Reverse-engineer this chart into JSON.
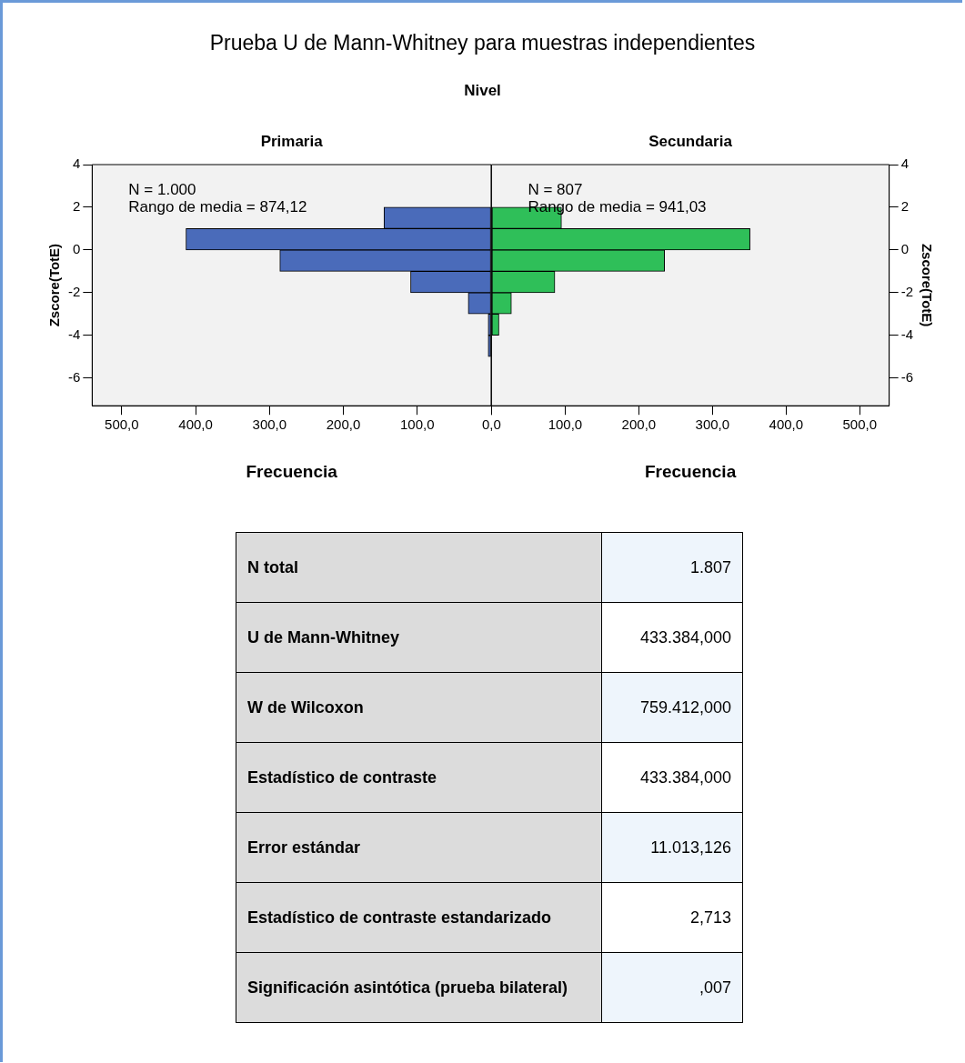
{
  "chart_data": [
    {
      "type": "bar",
      "title": "Prueba U de Mann-Whitney para muestras independientes",
      "subtitle": "Nivel",
      "orientation": "horizontal",
      "x": [
        -4.5,
        -3.5,
        -2.5,
        -1.5,
        -0.5,
        0.5,
        1.5
      ],
      "series": [
        {
          "name": "Primaria",
          "color": "#4a6bba",
          "values": [
            4,
            4,
            31,
            109,
            286,
            413,
            145
          ]
        }
      ],
      "xlabel": "Frecuencia",
      "ylabel": "Zscore(TotE)",
      "xlim": [
        540,
        0
      ],
      "xticks": [
        {
          "value": 500,
          "label": "500,0"
        },
        {
          "value": 400,
          "label": "400,0"
        },
        {
          "value": 300,
          "label": "300,0"
        },
        {
          "value": 200,
          "label": "200,0"
        },
        {
          "value": 100,
          "label": "100,0"
        },
        {
          "value": 0,
          "label": null
        }
      ],
      "ylim": [
        -7.3,
        4
      ],
      "yticks": [
        4,
        2,
        0,
        -2,
        -4,
        -6
      ],
      "grid": false,
      "legend": false,
      "annotations": [
        "N = 1.000",
        "Rango de media = 874,12"
      ]
    },
    {
      "type": "bar",
      "orientation": "horizontal",
      "x": [
        -4.5,
        -3.5,
        -2.5,
        -1.5,
        -0.5,
        0.5,
        1.5
      ],
      "series": [
        {
          "name": "Secundaria",
          "color": "#2fbf59",
          "values": [
            0,
            10,
            27,
            86,
            235,
            351,
            95
          ]
        }
      ],
      "xlabel": "Frecuencia",
      "ylabel": "Zscore(TotE)",
      "xlim": [
        0,
        540
      ],
      "xticks": [
        {
          "value": 0,
          "label": "0,0"
        },
        {
          "value": 100,
          "label": "100,0"
        },
        {
          "value": 200,
          "label": "200,0"
        },
        {
          "value": 300,
          "label": "300,0"
        },
        {
          "value": 400,
          "label": "400,0"
        },
        {
          "value": 500,
          "label": "500,0"
        }
      ],
      "ylim": [
        -7.3,
        4
      ],
      "yticks": [
        4,
        2,
        0,
        -2,
        -4,
        -6
      ],
      "grid": false,
      "legend": false,
      "annotations": [
        "N = 807",
        "Rango de media = 941,03"
      ]
    },
    {
      "type": "other",
      "annotations": [
        "N total",
        "1.807",
        "U de Mann-Whitney",
        "433.384,000",
        "W de Wilcoxon",
        "759.412,000",
        "Estadístico de contraste",
        "433.384,000",
        "Error estándar",
        "11.013,126",
        "Estadístico de contraste estandarizado",
        "2,713",
        "Significación asintótica (prueba bilateral)",
        ",007"
      ]
    }
  ]
}
